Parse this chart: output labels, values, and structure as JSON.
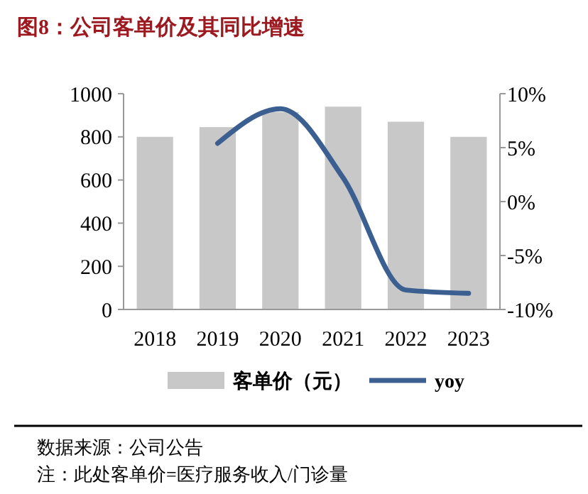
{
  "chart_data": {
    "type": "bar",
    "title": "图8：公司客单价及其同比增速",
    "categories": [
      "2018",
      "2019",
      "2020",
      "2021",
      "2022",
      "2023"
    ],
    "series": [
      {
        "name": "客单价（元）",
        "color": "#c8c8c8",
        "values": [
          800,
          845,
          915,
          940,
          870,
          800
        ]
      },
      {
        "name": "yoy",
        "type": "line",
        "axis": "y2",
        "color": "#3c5f91",
        "values": [
          null,
          5.4,
          8.6,
          2.2,
          -8.2,
          -8.5
        ]
      }
    ],
    "ylim": [
      0,
      1000
    ],
    "yticks": [
      0,
      200,
      400,
      600,
      800,
      1000
    ],
    "y2lim": [
      -10,
      10
    ],
    "y2ticks": [
      {
        "value": -10,
        "label": "-10%"
      },
      {
        "value": -5,
        "label": "-5%"
      },
      {
        "value": 0,
        "label": "0%"
      },
      {
        "value": 5,
        "label": "5%"
      },
      {
        "value": 10,
        "label": "10%"
      }
    ],
    "legend": "bottom",
    "grid": false,
    "marker": "none",
    "line_style": "solid",
    "annotations": [
      "数据来源：公司公告",
      "注：此处客单价=医疗服务收入/门诊量"
    ]
  }
}
